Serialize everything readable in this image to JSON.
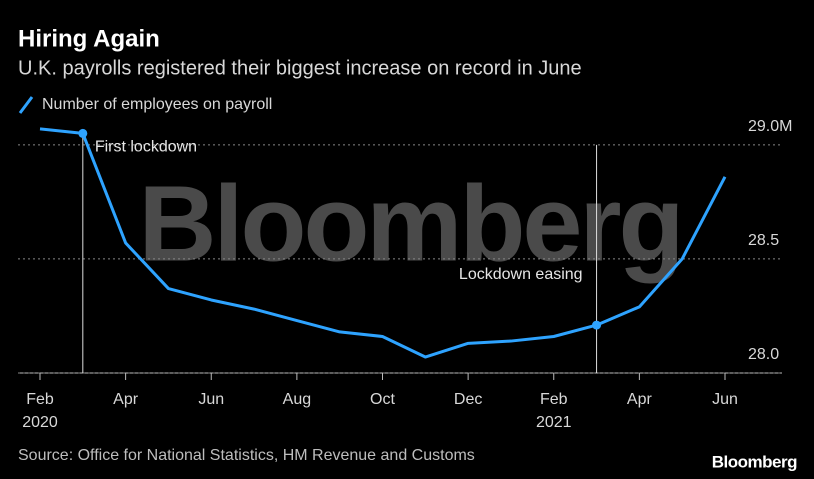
{
  "chart_data": {
    "type": "line",
    "title": "Hiring Again",
    "subtitle": "U.K. payrolls registered their biggest increase on record in June",
    "watermark": "Bloomberg",
    "categories": [
      "Feb",
      null,
      "Apr",
      null,
      "Jun",
      null,
      "Aug",
      null,
      "Oct",
      null,
      "Dec",
      null,
      "Feb",
      null,
      "Apr",
      null,
      "Jun"
    ],
    "category_years": [
      "2020",
      null,
      null,
      null,
      null,
      null,
      null,
      null,
      null,
      null,
      null,
      null,
      "2021",
      null,
      null,
      null,
      null
    ],
    "series": [
      {
        "name": "Number of employees on payroll",
        "color": "#2ea3ff",
        "values": [
          29.07,
          29.05,
          28.57,
          28.37,
          28.32,
          28.28,
          28.23,
          28.18,
          28.16,
          28.07,
          28.13,
          28.14,
          28.16,
          28.21,
          28.29,
          28.5,
          28.86
        ]
      }
    ],
    "ylim": [
      28,
      29.1
    ],
    "yticks": [
      {
        "value": 29,
        "label": "29.0M"
      },
      {
        "value": 28.5,
        "label": "28.5"
      },
      {
        "value": 28,
        "label": "28.0"
      }
    ],
    "grid": true,
    "annotations": [
      {
        "text": "First lockdown",
        "index": 1
      },
      {
        "text": "Lockdown easing",
        "index": 13
      }
    ],
    "source": "Source: Office for National Statistics, HM Revenue and Customs",
    "logo": "Bloomberg"
  }
}
